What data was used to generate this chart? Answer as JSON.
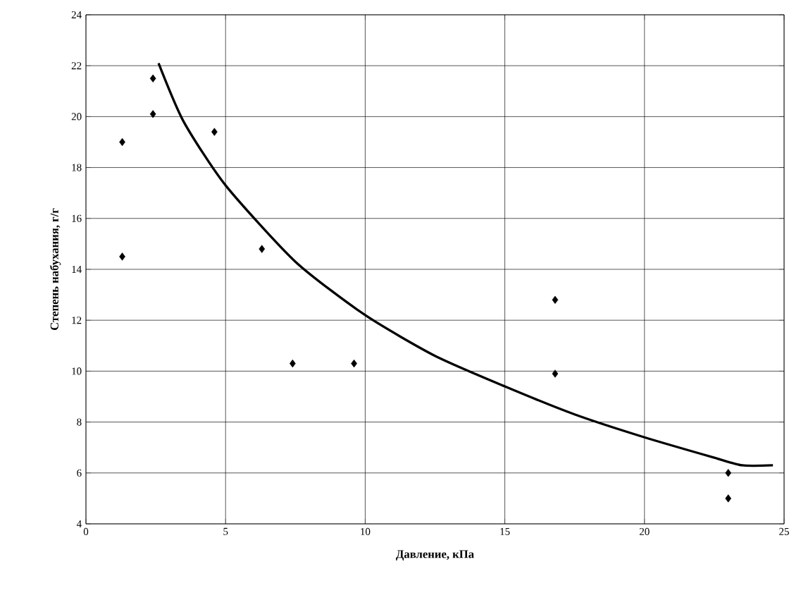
{
  "chart_data": {
    "type": "scatter",
    "xlabel": "Давление, кПа",
    "ylabel": "Степень набухания, г/г",
    "xlim": [
      0,
      25
    ],
    "xticks": [
      0,
      5,
      10,
      15,
      20,
      25
    ],
    "ylim": [
      4,
      24
    ],
    "yticks": [
      4,
      6,
      8,
      10,
      12,
      14,
      16,
      18,
      20,
      22,
      24
    ],
    "grid": true,
    "series": [
      {
        "marker": "diamond",
        "color": "#000000",
        "x": [
          1.3,
          1.3,
          2.4,
          2.4,
          4.6,
          6.3,
          7.4,
          9.6,
          16.8,
          16.8,
          23.0,
          23.0
        ],
        "values": [
          19.0,
          14.5,
          21.5,
          20.1,
          19.4,
          14.8,
          10.3,
          10.3,
          12.8,
          9.9,
          6.0,
          5.0
        ]
      },
      {
        "type": "line",
        "marker": "none",
        "line_style": "solid",
        "color": "#000000",
        "x": [
          2.6,
          3.5,
          5,
          7.5,
          10,
          12.5,
          15,
          17.5,
          20,
          22.5,
          23.5,
          24.6
        ],
        "values": [
          22.1,
          19.8,
          17.3,
          14.3,
          12.2,
          10.6,
          9.4,
          8.3,
          7.4,
          6.6,
          6.3,
          6.3
        ]
      }
    ]
  }
}
